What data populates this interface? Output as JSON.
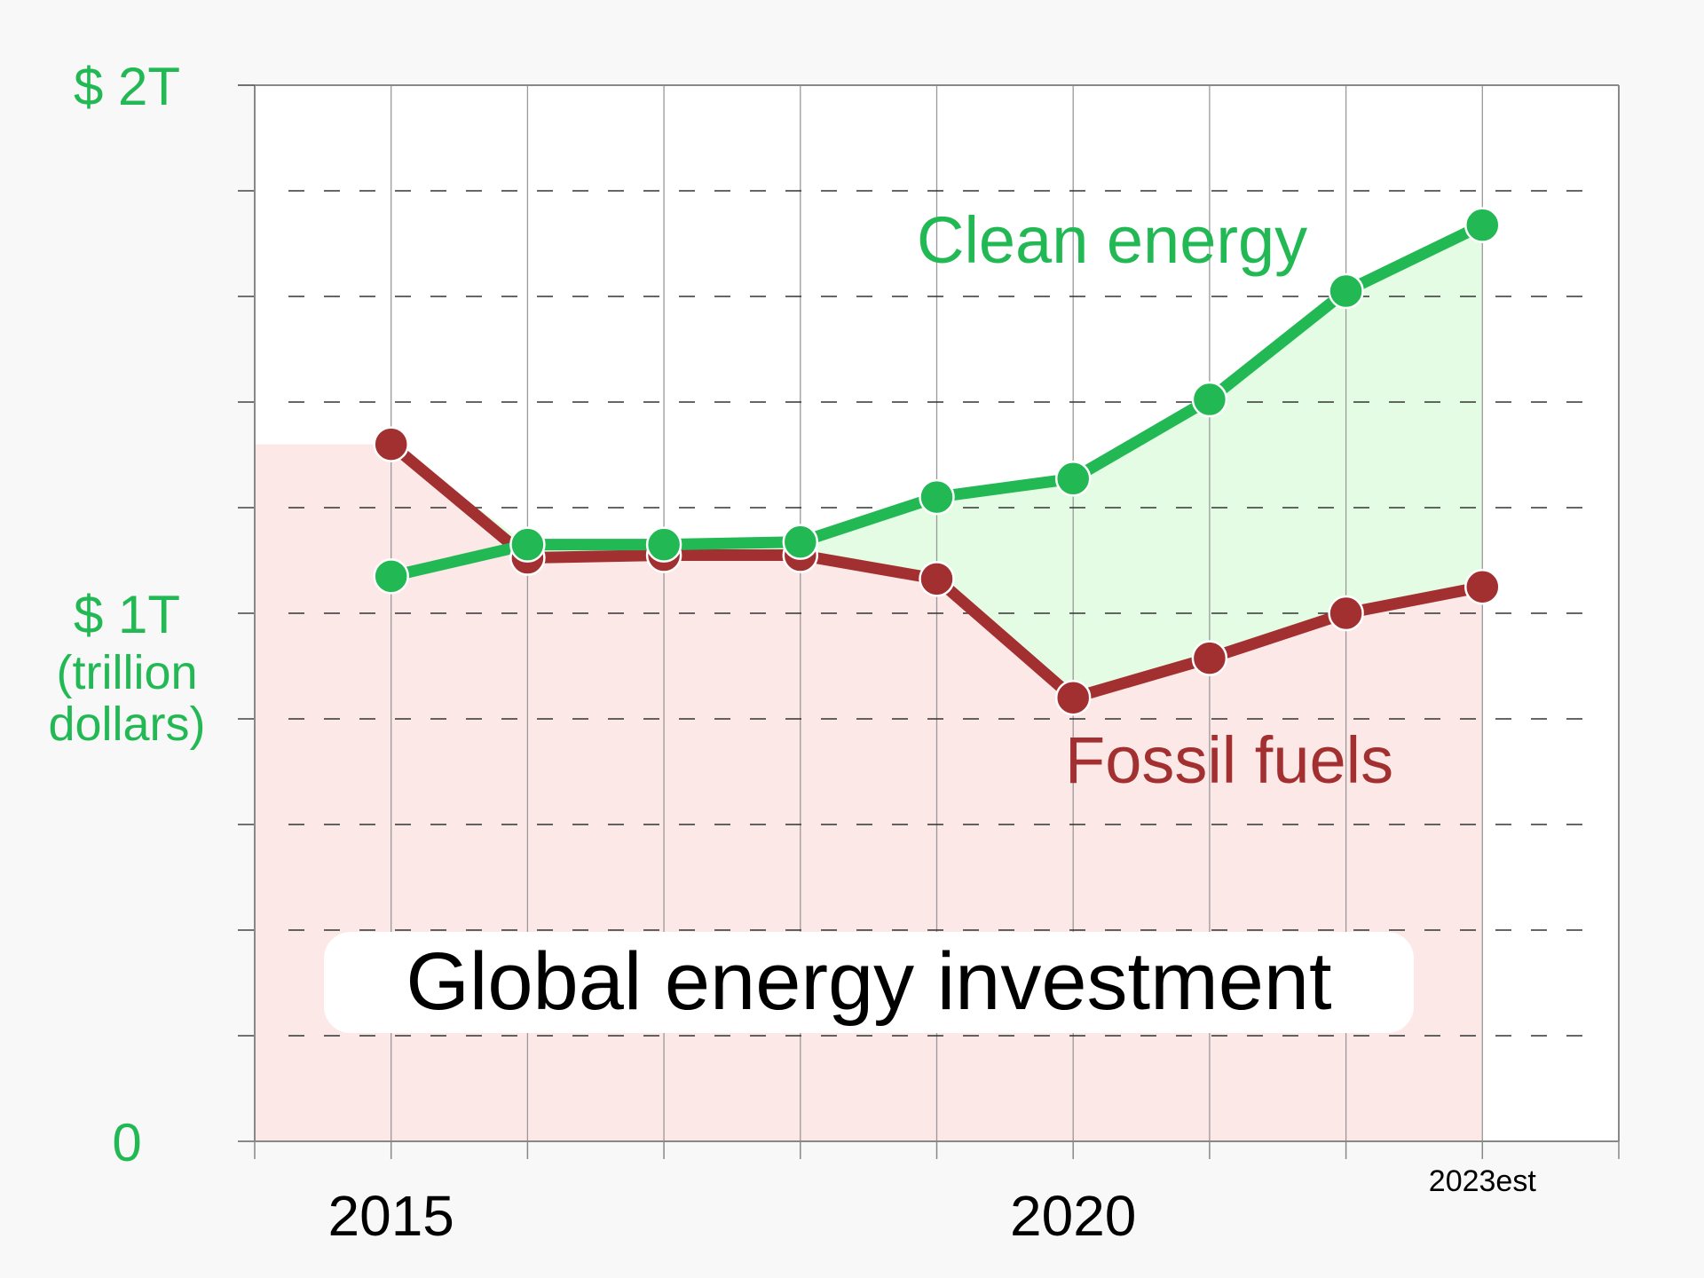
{
  "chart_data": {
    "type": "line",
    "title": "Global energy investment",
    "x": [
      2015,
      2016,
      2017,
      2018,
      2019,
      2020,
      2021,
      2022,
      2023
    ],
    "x_tick_labels": [
      {
        "x": 2015,
        "label": "2015"
      },
      {
        "x": 2020,
        "label": "2020"
      },
      {
        "x": 2023,
        "label": "2023est"
      }
    ],
    "y_tick_labels": [
      {
        "y": 0,
        "label": "0"
      },
      {
        "y": 1,
        "label": "$ 1T"
      },
      {
        "y": 2,
        "label": "$ 2T"
      }
    ],
    "y_unit_label": [
      "(trillion",
      "dollars)"
    ],
    "xlim": [
      2014,
      2024
    ],
    "ylim": [
      0,
      2
    ],
    "y_grid_step": 0.2,
    "grid": true,
    "series": [
      {
        "name": "Clean energy",
        "color": "#22b955",
        "fill_color": "#e4fce4",
        "values": [
          1.07,
          1.13,
          1.13,
          1.135,
          1.22,
          1.255,
          1.405,
          1.61,
          1.735
        ]
      },
      {
        "name": "Fossil fuels",
        "color": "#a33030",
        "fill_color": "#fde8e8",
        "values": [
          1.32,
          1.105,
          1.11,
          1.11,
          1.065,
          0.84,
          0.915,
          1.0,
          1.05
        ]
      }
    ]
  }
}
